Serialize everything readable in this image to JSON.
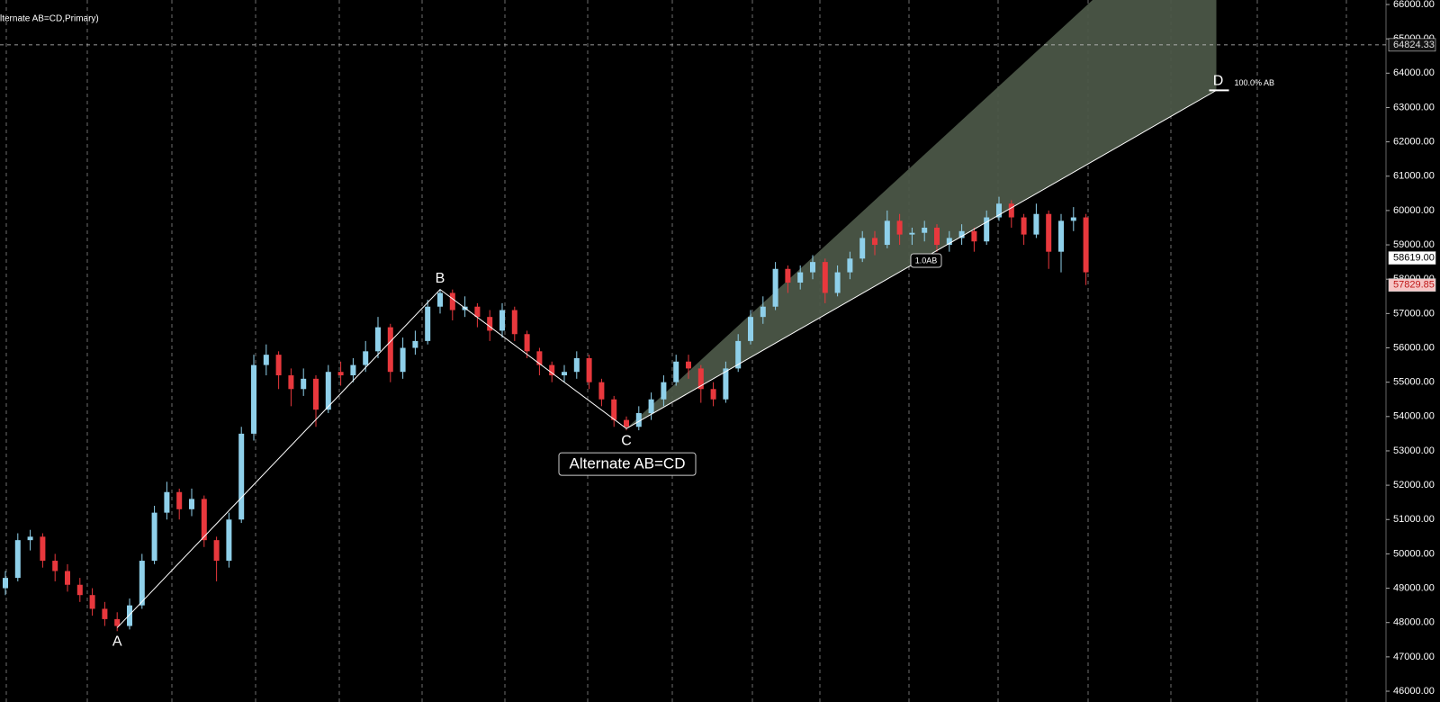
{
  "chart_data": {
    "type": "candlestick",
    "title": "lternate AB=CD,Primary)",
    "up_color": "#8fd0ea",
    "down_color": "#e8383d",
    "open": [
      49000,
      49300,
      50400,
      50500,
      49800,
      49500,
      49100,
      48800,
      48400,
      48100,
      47900,
      48500,
      49800,
      51200,
      51800,
      51300,
      51600,
      50400,
      49800,
      51000,
      53500,
      55500,
      55800,
      55200,
      54800,
      55100,
      54200,
      55300,
      55200,
      55500,
      55900,
      56600,
      55300,
      56000,
      56200,
      57200,
      57600,
      57100,
      57200,
      56900,
      56500,
      57100,
      56400,
      55900,
      55500,
      55200,
      55300,
      55700,
      55000,
      54500,
      53900,
      53700,
      54100,
      54500,
      55000,
      55600,
      55400,
      54800,
      54500,
      55400,
      56200,
      56900,
      57200,
      58300,
      57900,
      58200,
      58500,
      57600,
      58200,
      58600,
      59200,
      59000,
      59700,
      59300,
      59350,
      59500,
      59000,
      59200,
      59400,
      59100,
      59800,
      60200,
      59800,
      59300,
      59900,
      58800,
      59700,
      59800
    ],
    "high": [
      49500,
      50600,
      50700,
      50600,
      50000,
      49700,
      49300,
      49000,
      48600,
      48300,
      48700,
      50000,
      51400,
      52100,
      51900,
      51900,
      51700,
      50500,
      51200,
      53700,
      55800,
      56100,
      55900,
      55400,
      55400,
      55200,
      55500,
      55600,
      55700,
      56200,
      56900,
      56700,
      56300,
      56500,
      57400,
      57700,
      57700,
      57500,
      57300,
      57100,
      57300,
      57200,
      56500,
      56000,
      55600,
      55500,
      55900,
      55800,
      55100,
      54600,
      54000,
      54300,
      54700,
      55200,
      55800,
      55800,
      55500,
      55000,
      55600,
      56400,
      57100,
      57500,
      58500,
      58400,
      58400,
      58700,
      58600,
      58400,
      58800,
      59400,
      59400,
      60000,
      59900,
      59500,
      59700,
      59600,
      59400,
      59600,
      59500,
      60000,
      60400,
      60300,
      59900,
      60200,
      60000,
      59900,
      60100,
      59900
    ],
    "low": [
      48800,
      49200,
      50100,
      49600,
      49200,
      48900,
      48600,
      48200,
      47900,
      47750,
      47800,
      48400,
      49700,
      51000,
      51000,
      51100,
      50200,
      49200,
      49600,
      50900,
      53300,
      55200,
      54800,
      54300,
      54600,
      53700,
      54100,
      54900,
      55000,
      55300,
      55700,
      55000,
      55100,
      55800,
      56100,
      57000,
      56800,
      56900,
      56600,
      56200,
      56300,
      56200,
      55700,
      55200,
      55000,
      55000,
      55100,
      54800,
      54300,
      53700,
      53600,
      53600,
      53900,
      54300,
      54900,
      55100,
      54400,
      54300,
      54400,
      55300,
      56100,
      56700,
      57100,
      57600,
      57700,
      58000,
      57300,
      57500,
      58000,
      58500,
      58700,
      58900,
      59000,
      59000,
      59100,
      58800,
      58800,
      59000,
      58800,
      59000,
      59700,
      59500,
      59000,
      59200,
      58300,
      58200,
      59400,
      57830
    ],
    "close": [
      49300,
      50400,
      50500,
      49800,
      49500,
      49100,
      48800,
      48400,
      48100,
      47900,
      48500,
      49800,
      51200,
      51800,
      51300,
      51600,
      50400,
      49800,
      51000,
      53500,
      55500,
      55800,
      55200,
      54800,
      55100,
      54200,
      55300,
      55200,
      55500,
      55900,
      56600,
      55300,
      56000,
      56200,
      57200,
      57600,
      57100,
      57200,
      56900,
      56500,
      57100,
      56400,
      55900,
      55500,
      55200,
      55300,
      55700,
      55000,
      54500,
      53900,
      53700,
      54100,
      54500,
      55000,
      55600,
      55400,
      54800,
      54500,
      55400,
      56200,
      56900,
      57200,
      58300,
      57900,
      58200,
      58500,
      57600,
      58200,
      58600,
      59200,
      59000,
      59700,
      59300,
      59350,
      59500,
      59000,
      59200,
      59400,
      59100,
      59800,
      60200,
      59800,
      59300,
      59900,
      58800,
      59700,
      59800,
      58200
    ],
    "ylim": [
      45686,
      66131
    ],
    "yticks": [
      {
        "value": 46000,
        "label": "46000.00"
      },
      {
        "value": 47000,
        "label": "47000.00"
      },
      {
        "value": 48000,
        "label": "48000.00"
      },
      {
        "value": 49000,
        "label": "49000.00"
      },
      {
        "value": 50000,
        "label": "50000.00"
      },
      {
        "value": 51000,
        "label": "51000.00"
      },
      {
        "value": 52000,
        "label": "52000.00"
      },
      {
        "value": 53000,
        "label": "53000.00"
      },
      {
        "value": 54000,
        "label": "54000.00"
      },
      {
        "value": 55000,
        "label": "55000.00"
      },
      {
        "value": 56000,
        "label": "56000.00"
      },
      {
        "value": 57000,
        "label": "57000.00"
      },
      {
        "value": 58000,
        "label": "58000.00"
      },
      {
        "value": 59000,
        "label": "59000.00"
      },
      {
        "value": 60000,
        "label": "60000.00"
      },
      {
        "value": 61000,
        "label": "61000.00"
      },
      {
        "value": 62000,
        "label": "62000.00"
      },
      {
        "value": 63000,
        "label": "63000.00"
      },
      {
        "value": 64000,
        "label": "64000.00"
      },
      {
        "value": 65000,
        "label": "65000.00"
      },
      {
        "value": 66000,
        "label": "66000.00"
      }
    ],
    "price_labels": [
      {
        "value": 64824.33,
        "label": "64824.33",
        "bg": "#111111",
        "fg": "#dddddd",
        "dashed": true
      },
      {
        "value": 58619,
        "label": "58619.00",
        "bg": "#ffffff",
        "fg": "#000000",
        "dashed": false
      },
      {
        "value": 57829.85,
        "label": "57829.85",
        "bg": "#f6c6c6",
        "fg": "#c01818",
        "dashed": false
      }
    ],
    "pattern": {
      "name": "Alternate AB=CD",
      "cone_color": "#4b5647",
      "points": [
        {
          "label": "A",
          "index": 9,
          "value": 47850
        },
        {
          "label": "B",
          "index": 35,
          "value": 57700
        },
        {
          "label": "C",
          "index": 50,
          "value": 53650
        },
        {
          "label": "D",
          "index": 97.5,
          "value": 63500
        }
      ],
      "cd_label": "1.0AB",
      "d_label": "100.0% AB"
    }
  }
}
